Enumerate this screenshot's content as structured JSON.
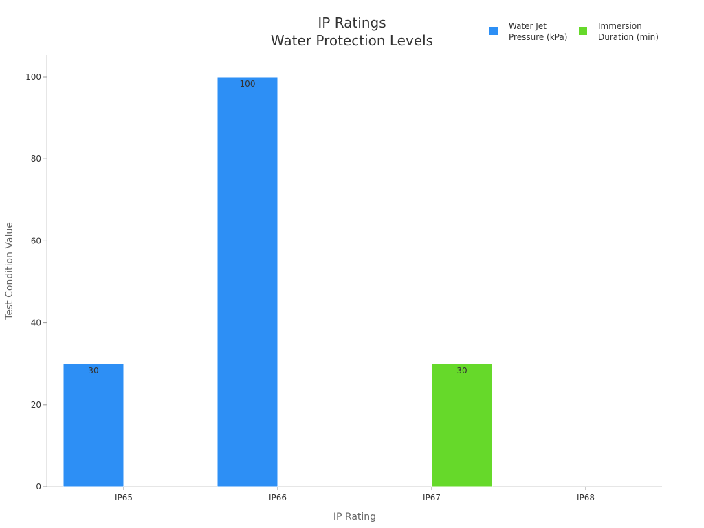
{
  "chart_data": {
    "type": "bar",
    "title": [
      "IP Ratings",
      "Water Protection Levels"
    ],
    "xlabel": "IP Rating",
    "ylabel": "Test Condition Value",
    "categories": [
      "IP65",
      "IP66",
      "IP67",
      "IP68"
    ],
    "ylim": [
      0,
      105
    ],
    "yticks": [
      0,
      20,
      40,
      60,
      80,
      100
    ],
    "series": [
      {
        "name": "Water Jet\nPressure (kPa)",
        "values": [
          30,
          100,
          null,
          null
        ],
        "color": "#2d8ff5"
      },
      {
        "name": "Immersion\nDuration (min)",
        "values": [
          null,
          null,
          30,
          null
        ],
        "color": "#66d92a"
      }
    ],
    "data_labels": true,
    "legend_position": "top-right",
    "grid": false
  }
}
